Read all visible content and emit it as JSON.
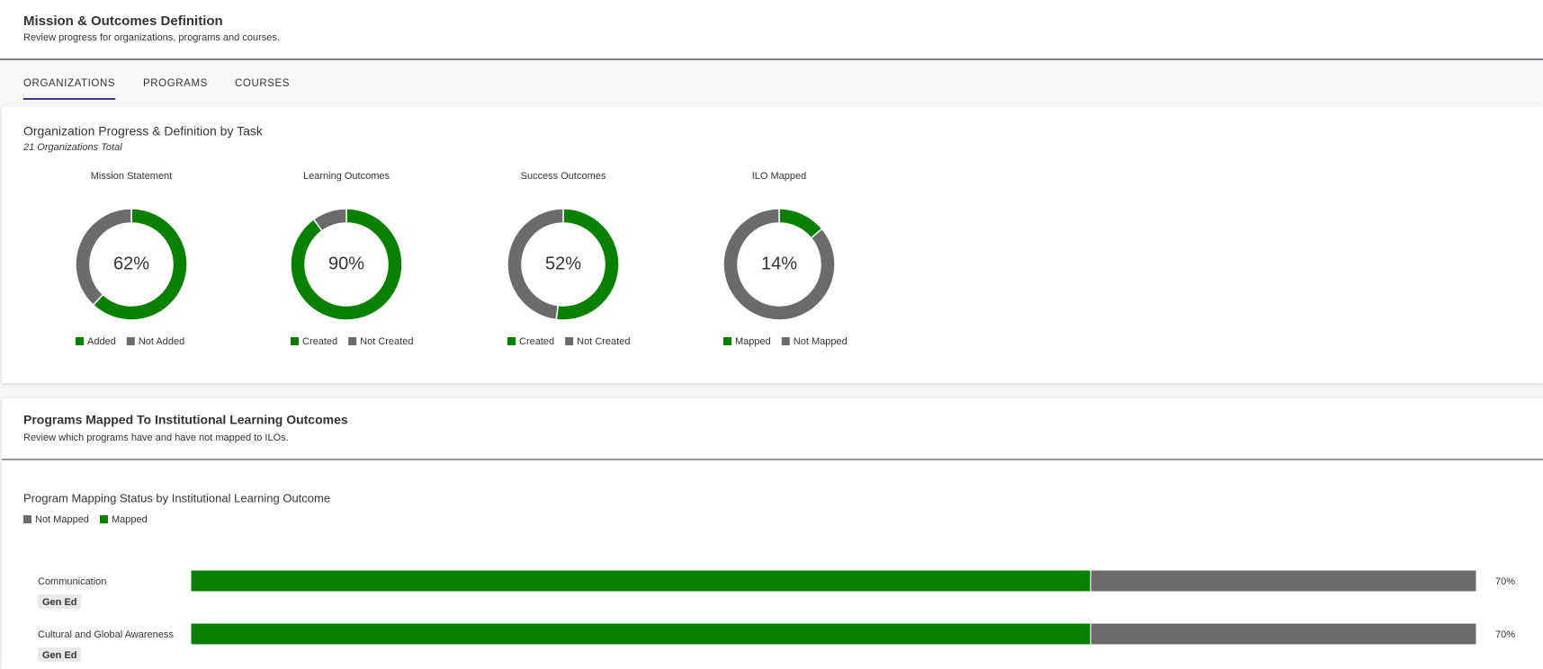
{
  "header": {
    "title": "Mission & Outcomes Definition",
    "subtitle": "Review progress for organizations, programs and courses."
  },
  "tabs": [
    {
      "label": "ORGANIZATIONS",
      "active": true
    },
    {
      "label": "PROGRAMS",
      "active": false
    },
    {
      "label": "COURSES",
      "active": false
    }
  ],
  "org_section": {
    "title": "Organization Progress & Definition by Task",
    "subtitle": "21 Organizations Total"
  },
  "program_section": {
    "title": "Programs Mapped To Institutional Learning Outcomes",
    "subtitle": "Review which programs have and have not mapped to ILOs."
  },
  "chart_data": [
    {
      "type": "donut",
      "title": "Mission Statement",
      "center_label": "62%",
      "categories": [
        "Added",
        "Not Added"
      ],
      "values": [
        62,
        38
      ],
      "colors": [
        "#0a8000",
        "#6b6b6b"
      ]
    },
    {
      "type": "donut",
      "title": "Learning Outcomes",
      "center_label": "90%",
      "categories": [
        "Created",
        "Not Created"
      ],
      "values": [
        90,
        10
      ],
      "colors": [
        "#0a8000",
        "#6b6b6b"
      ]
    },
    {
      "type": "donut",
      "title": "Success Outcomes",
      "center_label": "52%",
      "categories": [
        "Created",
        "Not Created"
      ],
      "values": [
        52,
        48
      ],
      "colors": [
        "#0a8000",
        "#6b6b6b"
      ]
    },
    {
      "type": "donut",
      "title": "ILO Mapped",
      "center_label": "14%",
      "categories": [
        "Mapped",
        "Not Mapped"
      ],
      "values": [
        14,
        86
      ],
      "colors": [
        "#0a8000",
        "#6b6b6b"
      ]
    },
    {
      "type": "bar",
      "title": "Program Mapping Status by Institutional Learning Outcome",
      "orientation": "horizontal",
      "stacked": true,
      "categories": [
        "Communication",
        "Cultural and Global Awareness"
      ],
      "tags": [
        "Gen Ed",
        "Gen Ed"
      ],
      "series": [
        {
          "name": "Not Mapped",
          "color": "#6b6b6b",
          "values": [
            30,
            30
          ]
        },
        {
          "name": "Mapped",
          "color": "#0a8000",
          "values": [
            70,
            70
          ],
          "value_labels": [
            "70%",
            "70%"
          ]
        }
      ],
      "xlim": [
        0,
        100
      ]
    }
  ]
}
